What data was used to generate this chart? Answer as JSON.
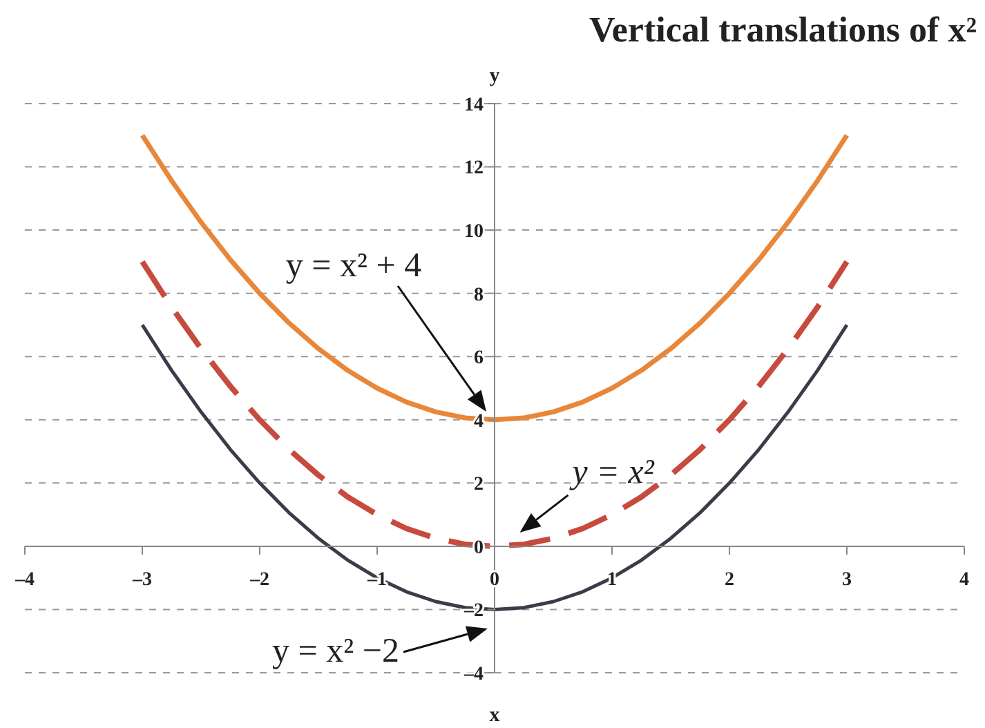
{
  "chart_data": {
    "type": "line",
    "title": "Vertical translations of x²",
    "xlabel": "x",
    "ylabel": "y",
    "x": [
      -3,
      -2.75,
      -2.5,
      -2.25,
      -2,
      -1.75,
      -1.5,
      -1.25,
      -1,
      -0.75,
      -0.5,
      -0.25,
      0,
      0.25,
      0.5,
      0.75,
      1,
      1.25,
      1.5,
      1.75,
      2,
      2.25,
      2.5,
      2.75,
      3
    ],
    "series": [
      {
        "color": "#e8873a",
        "line_style": "solid",
        "values": [
          13,
          11.56,
          10.25,
          9.06,
          8,
          7.06,
          6.25,
          5.56,
          5,
          4.56,
          4.25,
          4.06,
          4,
          4.06,
          4.25,
          4.56,
          5,
          5.56,
          6.25,
          7.06,
          8,
          9.06,
          10.25,
          11.56,
          13
        ]
      },
      {
        "color": "#c64a3d",
        "line_style": "dashed",
        "values": [
          9,
          7.56,
          6.25,
          5.06,
          4,
          3.06,
          2.25,
          1.56,
          1,
          0.56,
          0.25,
          0.06,
          0,
          0.06,
          0.25,
          0.56,
          1,
          1.56,
          2.25,
          3.06,
          4,
          5.06,
          6.25,
          7.56,
          9
        ]
      },
      {
        "color": "#3d3b4a",
        "line_style": "solid",
        "values": [
          7,
          5.56,
          4.25,
          3.06,
          2,
          1.06,
          0.25,
          -0.44,
          -1,
          -1.44,
          -1.75,
          -1.94,
          -2,
          -1.94,
          -1.75,
          -1.44,
          -1,
          -0.44,
          0.25,
          1.06,
          2,
          3.06,
          4.25,
          5.56,
          7
        ]
      }
    ],
    "xlim": [
      -4,
      4
    ],
    "xticks": [
      {
        "value": -4,
        "label": "–4"
      },
      {
        "value": -3,
        "label": "–3"
      },
      {
        "value": -2,
        "label": "–2"
      },
      {
        "value": -1,
        "label": "–1"
      },
      0,
      1,
      2,
      3,
      4
    ],
    "ylim": [
      -4,
      14
    ],
    "yticks": [
      {
        "value": -4,
        "label": "–4"
      },
      {
        "value": -2,
        "label": "–2"
      },
      0,
      2,
      4,
      6,
      8,
      10,
      12,
      14
    ],
    "grid": "y",
    "marker": "none",
    "annotations": [
      "y = x² + 4",
      {
        "text": "y = x²",
        "x": 0.25,
        "y": 0
      },
      "y = x² −2"
    ]
  }
}
